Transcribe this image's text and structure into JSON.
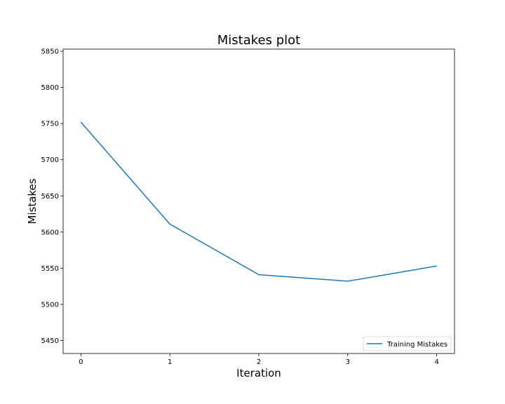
{
  "chart_data": {
    "type": "line",
    "title": "Mistakes plot",
    "xlabel": "Iteration",
    "ylabel": "Mistakes",
    "x": [
      0,
      1,
      2,
      3,
      4
    ],
    "series": [
      {
        "name": "Training Mistakes",
        "values": [
          5752,
          5611,
          5541,
          5532,
          5553
        ],
        "color": "#1f77b4"
      }
    ],
    "xticks": [
      "0",
      "1",
      "2",
      "3",
      "4"
    ],
    "yticks": [
      "5450",
      "5500",
      "5550",
      "5600",
      "5650",
      "5700",
      "5750",
      "5800",
      "5850"
    ],
    "xlim": [
      -0.2,
      4.2
    ],
    "ylim": [
      5432,
      5853
    ],
    "grid": false,
    "legend_position": "lower right"
  }
}
